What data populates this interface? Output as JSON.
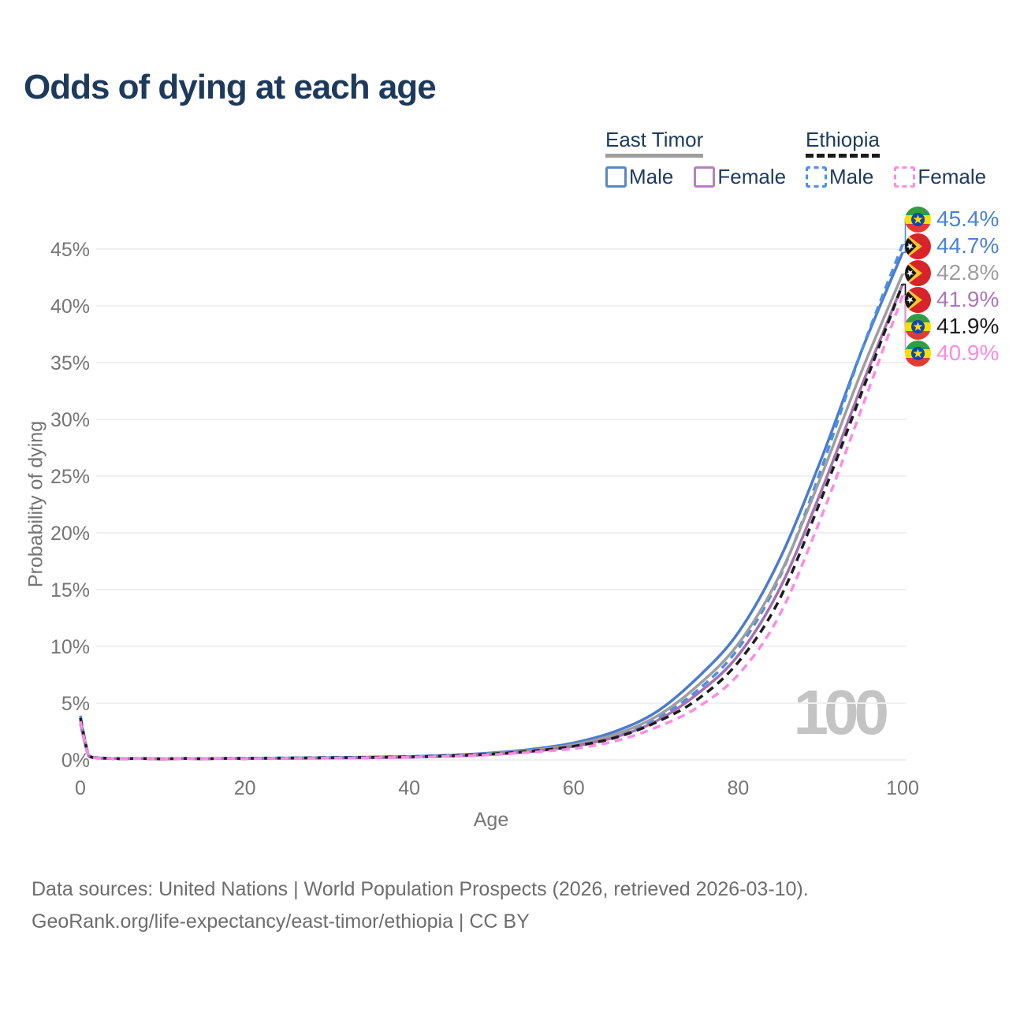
{
  "title": "Odds of dying at each age",
  "watermark": "100",
  "legend": {
    "groups": [
      {
        "name": "East Timor",
        "line_style": "solid",
        "underline_color": "#9e9e9e",
        "items": [
          {
            "label": "Male",
            "color": "#5b87c5",
            "dashed": false
          },
          {
            "label": "Female",
            "color": "#b681bd",
            "dashed": false
          }
        ]
      },
      {
        "name": "Ethiopia",
        "line_style": "dashed",
        "underline_color": "#1a1a1a",
        "items": [
          {
            "label": "Male",
            "color": "#4a90e8",
            "dashed": true
          },
          {
            "label": "Female",
            "color": "#fd8ae3",
            "dashed": true
          }
        ]
      }
    ]
  },
  "end_labels": [
    {
      "value": "45.4%",
      "flag": "ethiopia-flag",
      "series": "Ethiopia Male",
      "color": "#4a82d8"
    },
    {
      "value": "44.7%",
      "flag": "east-timor-flag",
      "series": "East Timor Male",
      "color": "#4a82d8"
    },
    {
      "value": "42.8%",
      "flag": "east-timor-flag",
      "series": "East Timor",
      "color": "#9e9e9e"
    },
    {
      "value": "41.9%",
      "flag": "east-timor-flag",
      "series": "East Timor Female",
      "color": "#ab77ba"
    },
    {
      "value": "41.9%",
      "flag": "ethiopia-flag",
      "series": "Ethiopia",
      "color": "#1d1d1d"
    },
    {
      "value": "40.9%",
      "flag": "ethiopia-flag",
      "series": "Ethiopia Female",
      "color": "#fd8ae3"
    }
  ],
  "footer": {
    "line1": "Data sources: United Nations | World Population Prospects (2026, retrieved 2026-03-10).",
    "line2": "GeoRank.org/life-expectancy/east-timor/ethiopia | CC BY"
  },
  "chart_data": {
    "type": "line",
    "title": "Odds of dying at each age",
    "xlabel": "Age",
    "ylabel": "Probability of dying",
    "xlim": [
      0,
      100
    ],
    "ylim": [
      0,
      47.5
    ],
    "grid": "horizontal",
    "legend_position": "top-right",
    "x_ticks": [
      0,
      20,
      40,
      60,
      80,
      100
    ],
    "y_ticks": [
      "0%",
      "5%",
      "10%",
      "15%",
      "20%",
      "25%",
      "30%",
      "35%",
      "40%",
      "45%"
    ],
    "y_ticks_percent": [
      0,
      5,
      10,
      15,
      20,
      25,
      30,
      35,
      40,
      45
    ],
    "ages": [
      0,
      1,
      2,
      3,
      4,
      5,
      10,
      15,
      20,
      25,
      30,
      35,
      40,
      45,
      50,
      55,
      60,
      65,
      70,
      75,
      80,
      85,
      90,
      95,
      100
    ],
    "series": [
      {
        "name": "East Timor Male",
        "country": "East Timor",
        "sex": "Male",
        "color": "#4b7bce",
        "dashed": false,
        "end_value_pct": 44.7,
        "values": [
          3.7,
          0.4,
          0.2,
          0.15,
          0.12,
          0.1,
          0.08,
          0.1,
          0.14,
          0.17,
          0.2,
          0.24,
          0.3,
          0.42,
          0.62,
          0.95,
          1.5,
          2.5,
          4.2,
          7.2,
          11.2,
          17.6,
          26.3,
          36.0,
          44.7
        ]
      },
      {
        "name": "Ethiopia Male",
        "country": "Ethiopia",
        "sex": "Male",
        "color": "#4a90e8",
        "dashed": true,
        "end_value_pct": 45.4,
        "values": [
          3.9,
          0.45,
          0.22,
          0.16,
          0.13,
          0.11,
          0.09,
          0.11,
          0.15,
          0.18,
          0.21,
          0.25,
          0.3,
          0.4,
          0.57,
          0.85,
          1.3,
          2.1,
          3.6,
          6.1,
          9.8,
          16.0,
          25.4,
          36.0,
          45.4
        ]
      },
      {
        "name": "East Timor",
        "country": "East Timor",
        "sex": "Both",
        "color": "#9e9e9e",
        "dashed": false,
        "end_value_pct": 42.8,
        "values": [
          3.5,
          0.38,
          0.19,
          0.14,
          0.11,
          0.09,
          0.07,
          0.09,
          0.12,
          0.15,
          0.18,
          0.21,
          0.27,
          0.37,
          0.55,
          0.85,
          1.35,
          2.25,
          3.8,
          6.5,
          10.2,
          16.2,
          24.8,
          34.2,
          42.8
        ]
      },
      {
        "name": "East Timor Female",
        "country": "East Timor",
        "sex": "Female",
        "color": "#a472b3",
        "dashed": false,
        "end_value_pct": 41.9,
        "values": [
          3.2,
          0.35,
          0.17,
          0.12,
          0.1,
          0.08,
          0.06,
          0.08,
          0.1,
          0.13,
          0.15,
          0.18,
          0.23,
          0.32,
          0.48,
          0.74,
          1.2,
          2.0,
          3.4,
          5.8,
          9.2,
          15.0,
          23.5,
          32.9,
          41.9
        ]
      },
      {
        "name": "Ethiopia",
        "country": "Ethiopia",
        "sex": "Both",
        "color": "#1d1d1d",
        "dashed": true,
        "end_value_pct": 41.9,
        "values": [
          3.7,
          0.42,
          0.2,
          0.15,
          0.12,
          0.1,
          0.08,
          0.1,
          0.13,
          0.16,
          0.19,
          0.22,
          0.27,
          0.36,
          0.52,
          0.78,
          1.2,
          1.95,
          3.3,
          5.3,
          8.6,
          14.1,
          22.8,
          32.3,
          41.9
        ]
      },
      {
        "name": "Ethiopia Female",
        "country": "Ethiopia",
        "sex": "Female",
        "color": "#fd8ae3",
        "dashed": true,
        "end_value_pct": 40.9,
        "values": [
          3.4,
          0.4,
          0.19,
          0.14,
          0.11,
          0.09,
          0.07,
          0.09,
          0.11,
          0.14,
          0.16,
          0.19,
          0.24,
          0.31,
          0.45,
          0.68,
          1.0,
          1.65,
          2.85,
          4.6,
          7.5,
          12.7,
          21.2,
          30.9,
          40.9
        ]
      }
    ]
  }
}
